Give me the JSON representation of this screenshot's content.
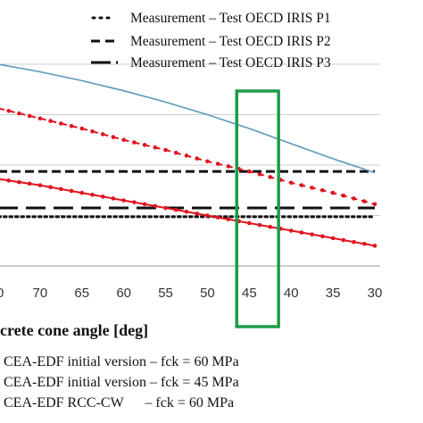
{
  "colors": {
    "blue": "#5b9ab8",
    "red": "#e0141e",
    "black": "#111111",
    "grid": "#cfcfcf",
    "highlight": "#1f9a4a"
  },
  "legend_top": [
    {
      "label": "Measurement – Test OECD IRIS P1",
      "style": "dotted"
    },
    {
      "label": "Measurement – Test OECD IRIS P2",
      "style": "dashed"
    },
    {
      "label": "Measurement – Test OECD IRIS P3",
      "style": "long-dash"
    }
  ],
  "legend_bottom": [
    {
      "label": "CEA-EDF initial version – fck = 60 MPa"
    },
    {
      "label": "CEA-EDF initial version – fck = 45 MPa"
    },
    {
      "label": "CEA-EDF RCC-CW      – fck = 60 MPa"
    }
  ],
  "chart_data": {
    "type": "line",
    "xlabel": "crete cone angle [deg]",
    "x_ticks": [
      70,
      65,
      60,
      55,
      50,
      45,
      40,
      35,
      30
    ],
    "x_ticks_shown": [
      "70",
      "65",
      "60",
      "55",
      "50",
      "45",
      "40",
      "35",
      "30"
    ],
    "xlim": [
      75,
      30
    ],
    "x_reversed": true,
    "ylim": [
      0,
      8
    ],
    "grid": true,
    "highlight_band_x": [
      46.5,
      41.5
    ],
    "series": [
      {
        "label": "Measurement – Test OECD IRIS P1",
        "style": "dotted",
        "color": "black",
        "x": [
          75,
          30
        ],
        "y": [
          1.95,
          1.95
        ]
      },
      {
        "label": "Measurement – Test OECD IRIS P2",
        "style": "dashed",
        "color": "black",
        "x": [
          75,
          30
        ],
        "y": [
          3.75,
          3.75
        ]
      },
      {
        "label": "Measurement – Test OECD IRIS P3",
        "style": "long-dash",
        "color": "black",
        "x": [
          75,
          30
        ],
        "y": [
          2.3,
          2.3
        ]
      },
      {
        "label": "",
        "style": "solid",
        "color": "blue",
        "markers": false,
        "x": [
          75,
          70,
          65,
          60,
          55,
          50,
          45,
          40,
          35,
          30
        ],
        "y": [
          8.0,
          7.7,
          7.35,
          6.95,
          6.5,
          6.0,
          5.45,
          4.85,
          4.25,
          3.7
        ]
      },
      {
        "label": "",
        "style": "dashed",
        "color": "red",
        "markers": true,
        "x": [
          75,
          70,
          65,
          60,
          55,
          50,
          45,
          40,
          35,
          30
        ],
        "y": [
          6.25,
          5.85,
          5.45,
          5.0,
          4.6,
          4.15,
          3.75,
          3.3,
          2.9,
          2.45
        ]
      },
      {
        "label": "",
        "style": "solid",
        "color": "red",
        "markers": true,
        "x": [
          75,
          70,
          65,
          60,
          55,
          50,
          45,
          40,
          35,
          30
        ],
        "y": [
          3.45,
          3.2,
          2.9,
          2.6,
          2.3,
          2.0,
          1.7,
          1.4,
          1.1,
          0.8
        ]
      }
    ]
  }
}
